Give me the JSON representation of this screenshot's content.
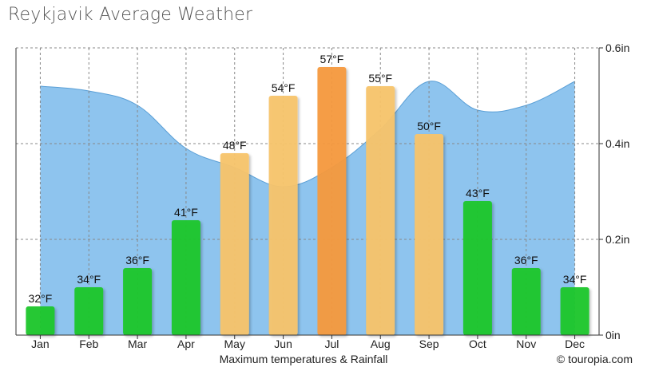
{
  "title": "Reykjavik Average Weather",
  "caption": "Maximum temperatures & Rainfall",
  "copyright": "© touropia.com",
  "chart_data": {
    "type": "bar",
    "title": "Reykjavik Average Weather",
    "xlabel": "Maximum temperatures & Rainfall",
    "categories": [
      "Jan",
      "Feb",
      "Mar",
      "Apr",
      "May",
      "Jun",
      "Jul",
      "Aug",
      "Sep",
      "Oct",
      "Nov",
      "Dec"
    ],
    "series": [
      {
        "name": "Maximum temperature",
        "unit": "°F",
        "type": "bar",
        "values": [
          32,
          34,
          36,
          41,
          48,
          54,
          57,
          55,
          50,
          43,
          36,
          34
        ],
        "labels": [
          "32°F",
          "34°F",
          "36°F",
          "41°F",
          "48°F",
          "54°F",
          "57°F",
          "55°F",
          "50°F",
          "43°F",
          "36°F",
          "34°F"
        ],
        "colors": [
          "#1ec72c",
          "#1ec72c",
          "#1ec72c",
          "#1ec72c",
          "#f8c46c",
          "#f8c46c",
          "#f59a3e",
          "#f8c46c",
          "#f8c46c",
          "#1ec72c",
          "#1ec72c",
          "#1ec72c"
        ],
        "ylim": [
          29,
          59
        ]
      },
      {
        "name": "Rainfall",
        "unit": "in",
        "type": "area",
        "color": "#8ec4ee",
        "values": [
          0.52,
          0.51,
          0.48,
          0.39,
          0.35,
          0.31,
          0.35,
          0.43,
          0.53,
          0.47,
          0.48,
          0.53
        ]
      }
    ],
    "yaxis_right": {
      "ticks": [
        0,
        0.2,
        0.4,
        0.6
      ],
      "tick_labels": [
        "0in",
        "0.2in",
        "0.4in",
        "0.6in"
      ],
      "ylim": [
        0,
        0.6
      ]
    },
    "grid": true
  }
}
